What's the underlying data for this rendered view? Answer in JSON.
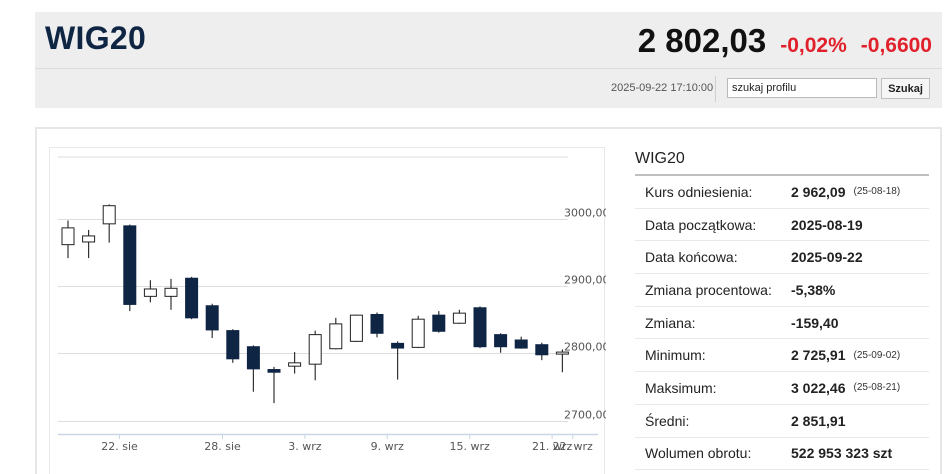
{
  "header": {
    "title": "WIG20",
    "price": "2 802,03",
    "change_pct": "-0,02%",
    "change_abs": "-0,6600",
    "timestamp": "2025-09-22 17:10:00",
    "search_value": "szukaj profilu",
    "search_button": "Szukaj"
  },
  "info": {
    "title": "WIG20",
    "rows": [
      {
        "label": "Kurs odniesienia:",
        "value": "2 962,09",
        "date": "(25-08-18)"
      },
      {
        "label": "Data początkowa:",
        "value": "2025-08-19",
        "date": ""
      },
      {
        "label": "Data końcowa:",
        "value": "2025-09-22",
        "date": ""
      },
      {
        "label": "Zmiana procentowa:",
        "value": "-5,38%",
        "date": ""
      },
      {
        "label": "Zmiana:",
        "value": "-159,40",
        "date": ""
      },
      {
        "label": "Minimum:",
        "value": "2 725,91",
        "date": "(25-09-02)"
      },
      {
        "label": "Maksimum:",
        "value": "3 022,46",
        "date": "(25-08-21)"
      },
      {
        "label": "Średni:",
        "value": "2 851,91",
        "date": ""
      },
      {
        "label": "Wolumen obrotu:",
        "value": "522 953 323 szt",
        "date": ""
      }
    ]
  },
  "chart_data": {
    "type": "candlestick",
    "ylim": [
      2680,
      3100
    ],
    "y_ticks": [
      {
        "value": 2700,
        "label": "2700,00"
      },
      {
        "value": 2800,
        "label": "2800,00"
      },
      {
        "value": 2900,
        "label": "2900,00"
      },
      {
        "value": 3000,
        "label": "3000,00"
      }
    ],
    "x_ticks": [
      {
        "index": 2.5,
        "label": "22. sie"
      },
      {
        "index": 7.5,
        "label": "28. sie"
      },
      {
        "index": 11.5,
        "label": "3. wrz"
      },
      {
        "index": 15.5,
        "label": "9. wrz"
      },
      {
        "index": 19.5,
        "label": "15. wrz"
      },
      {
        "index": 23.5,
        "label": "21. wrz"
      },
      {
        "index": 24.5,
        "label": "22. wrz"
      }
    ],
    "colors": {
      "up": "#ffffff",
      "down": "#0f2544",
      "wick": "#333333",
      "grid": "#dddddd",
      "axis": "#c9d6e6"
    },
    "candles": [
      {
        "o": 2962,
        "h": 2998,
        "l": 2942,
        "c": 2987
      },
      {
        "o": 2966,
        "h": 2984,
        "l": 2942,
        "c": 2975
      },
      {
        "o": 2993,
        "h": 3022,
        "l": 2965,
        "c": 3020
      },
      {
        "o": 2990,
        "h": 2992,
        "l": 2863,
        "c": 2873
      },
      {
        "o": 2885,
        "h": 2909,
        "l": 2876,
        "c": 2896
      },
      {
        "o": 2885,
        "h": 2911,
        "l": 2865,
        "c": 2897
      },
      {
        "o": 2912,
        "h": 2914,
        "l": 2851,
        "c": 2853
      },
      {
        "o": 2871,
        "h": 2874,
        "l": 2823,
        "c": 2835
      },
      {
        "o": 2834,
        "h": 2836,
        "l": 2786,
        "c": 2792
      },
      {
        "o": 2810,
        "h": 2812,
        "l": 2743,
        "c": 2777
      },
      {
        "o": 2776,
        "h": 2780,
        "l": 2726,
        "c": 2772
      },
      {
        "o": 2781,
        "h": 2802,
        "l": 2770,
        "c": 2786
      },
      {
        "o": 2784,
        "h": 2834,
        "l": 2760,
        "c": 2828
      },
      {
        "o": 2807,
        "h": 2853,
        "l": 2806,
        "c": 2844
      },
      {
        "o": 2818,
        "h": 2858,
        "l": 2817,
        "c": 2857
      },
      {
        "o": 2858,
        "h": 2861,
        "l": 2824,
        "c": 2830
      },
      {
        "o": 2815,
        "h": 2818,
        "l": 2761,
        "c": 2808
      },
      {
        "o": 2809,
        "h": 2856,
        "l": 2808,
        "c": 2851
      },
      {
        "o": 2857,
        "h": 2863,
        "l": 2831,
        "c": 2833
      },
      {
        "o": 2845,
        "h": 2865,
        "l": 2844,
        "c": 2860
      },
      {
        "o": 2868,
        "h": 2870,
        "l": 2808,
        "c": 2810
      },
      {
        "o": 2828,
        "h": 2830,
        "l": 2801,
        "c": 2810
      },
      {
        "o": 2820,
        "h": 2825,
        "l": 2807,
        "c": 2808
      },
      {
        "o": 2813,
        "h": 2816,
        "l": 2790,
        "c": 2798
      },
      {
        "o": 2799,
        "h": 2806,
        "l": 2772,
        "c": 2802
      }
    ]
  }
}
